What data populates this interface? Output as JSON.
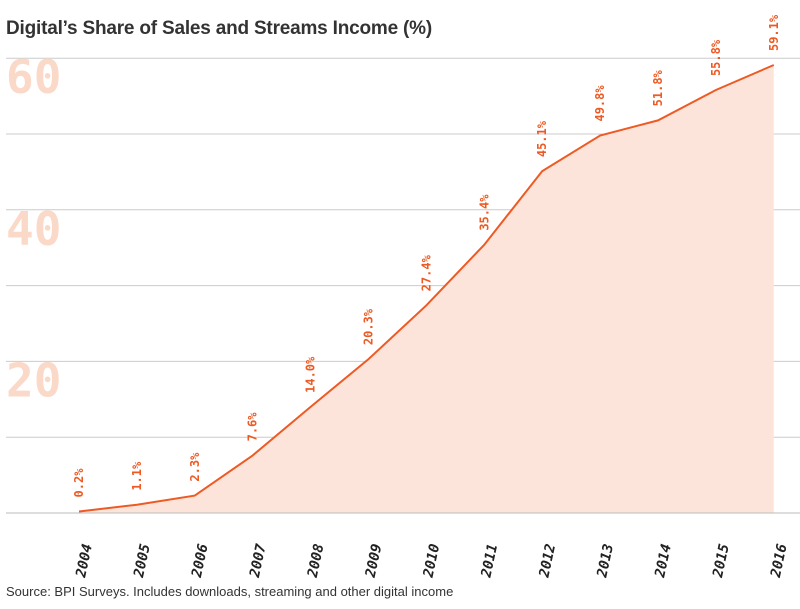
{
  "title": "Digital’s Share of Sales and Streams Income (%)",
  "source": "Source: BPI Surveys. Includes downloads, streaming and other digital income",
  "colors": {
    "line": "#ee5a24",
    "fill": "#fde4da",
    "grid": "#cccccc",
    "ytick": "#fbd9c9",
    "text": "#333333"
  },
  "chart_data": {
    "type": "area",
    "title": "Digital’s Share of Sales and Streams Income (%)",
    "xlabel": "",
    "ylabel": "",
    "x": [
      "2004",
      "2005",
      "2006",
      "2007",
      "2008",
      "2009",
      "2010",
      "2011",
      "2012",
      "2013",
      "2014",
      "2015",
      "2016"
    ],
    "values": [
      0.2,
      1.1,
      2.3,
      7.6,
      14.0,
      20.3,
      27.4,
      35.4,
      45.1,
      49.8,
      51.8,
      55.8,
      59.1
    ],
    "data_labels": [
      "0.2%",
      "1.1%",
      "2.3%",
      "7.6%",
      "14.0%",
      "20.3%",
      "27.4%",
      "35.4%",
      "45.1%",
      "49.8%",
      "51.8%",
      "55.8%",
      "59.1%"
    ],
    "ylim": [
      0,
      60
    ],
    "yticks": [
      20,
      40,
      60
    ],
    "ytick_labels": [
      "20",
      "40",
      "60"
    ],
    "grid": true,
    "legend": false
  }
}
